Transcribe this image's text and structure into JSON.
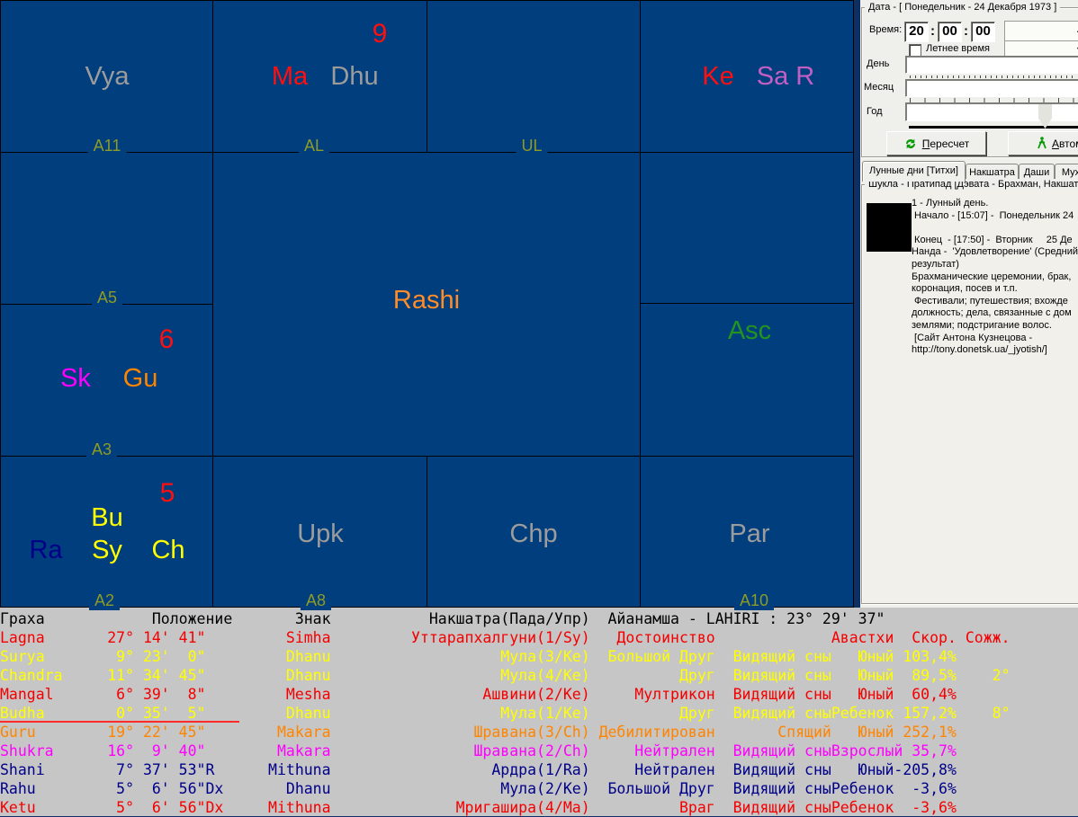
{
  "colors": {
    "chart_bg": "#003E7D",
    "grid": "#000000",
    "planet_gray": "#9C9C9C",
    "red": "#FF1010",
    "yellow": "#FFFF00",
    "orange": "#FF8400",
    "magenta": "#FF00FF",
    "violet": "#C35FC3",
    "navy": "#000089",
    "green": "#22941F",
    "olive": "#8E9B26",
    "table_bg": "#C6C6C6",
    "panel_bg": "#EFEFEB",
    "selection_underline": "#FF2A2A"
  },
  "chart": {
    "vya": "Vya",
    "a11": "A11",
    "nine": "9",
    "ma": "Ma",
    "dhu": "Dhu",
    "al": "AL",
    "ul": "UL",
    "ke": "Ke",
    "sa_r": "Sa R",
    "a5": "A5",
    "six": "6",
    "sk": "Sk",
    "gu": "Gu",
    "a3": "A3",
    "rashi": "Rashi",
    "asc": "Asc",
    "five": "5",
    "bu": "Bu",
    "ra": "Ra",
    "sy": "Sy",
    "ch": "Ch",
    "a2": "A2",
    "upk": "Upk",
    "a8": "A8",
    "chp": "Chp",
    "par": "Par",
    "a10": "A10"
  },
  "panel": {
    "date_title": "Дата - [ Понедельник - 24 Декабря  1973 ]",
    "time_label": "Время:",
    "time_h": "20",
    "time_m": "00",
    "time_s": "00",
    "colon": ":",
    "dst_label": "Летнее время",
    "day_label": "День",
    "month_label": "Месяц",
    "year_label": "Год",
    "recalc_button": "Пересчет",
    "auto_button": "Автома",
    "spin_up": "▲",
    "spin_down": "▼",
    "tabs": [
      "Лунные дни [Титхи]",
      "Накшатра",
      "Даши",
      "Мух"
    ],
    "info_title": "Шукла - Пратипад [Дэвата - Брахман, Накшат",
    "info_lines": [
      "1 - Лунный день.",
      " Начало - [15:07] -  Понедельник 24",
      "",
      " Конец  - [17:50] -  Вторник     25 Де",
      "Нанда -  'Удовлетворение' (Средний",
      "результат)",
      "Брахманические церемонии, брак,",
      "коронация, посев и т.п.",
      " Фестивали; путешествия; вхожде",
      "должность; дела, связанные с дом",
      "землями; подстригание волос.",
      " [Сайт Антона Кузнецова -",
      "http://tony.donetsk.ua/_jyotish/]"
    ]
  },
  "table": {
    "rows": [
      {
        "header": true,
        "color": "black",
        "name": "Граха",
        "pos": "Положение",
        "suffix": "",
        "sign": "Знак",
        "nakshatra": "Накшатра(Пада/Упр)",
        "ayanamsha": "Айанамша - LAHIRI : 23° 29' 37\""
      },
      {
        "color": "red",
        "name": "Lagna",
        "pos": "27° 14' 41\"",
        "suffix": "",
        "sign": "Simha",
        "nakshatra": "Уттарапхалгуни(1/Sy)",
        "dignity": "Достоинство",
        "state": "",
        "age": "Авастхи",
        "speed": "Скор.",
        "comb": "Сожж."
      },
      {
        "color": "yellow",
        "name": "Surya",
        "pos": "9° 23'  0\"",
        "suffix": "",
        "sign": "Dhanu",
        "nakshatra": "Мула(3/Ke)",
        "dignity": "Большой Друг",
        "state": "Видящий сны",
        "age": "Юный",
        "speed": "103,4%",
        "comb": ""
      },
      {
        "color": "yellow",
        "name": "Chandra",
        "pos": "11° 34' 45\"",
        "suffix": "",
        "sign": "Dhanu",
        "nakshatra": "Мула(4/Ke)",
        "dignity": "Друг",
        "state": "Видящий сны",
        "age": "Юный",
        "speed": "89,5%",
        "comb": "2°"
      },
      {
        "color": "red",
        "name": "Mangal",
        "pos": "6° 39'  8\"",
        "suffix": "",
        "sign": "Mesha",
        "nakshatra": "Ашвини(2/Ke)",
        "dignity": "Мултрикон",
        "state": "Видящий сны",
        "age": "Юный",
        "speed": "60,4%",
        "comb": ""
      },
      {
        "color": "yellow",
        "underline": true,
        "name": "Budha",
        "pos": "0° 35'  5\"",
        "suffix": "",
        "sign": "Dhanu",
        "nakshatra": "Мула(1/Ke)",
        "dignity": "Друг",
        "state": "Видящий сны",
        "age": "Ребенок",
        "speed": "157,2%",
        "comb": "8°"
      },
      {
        "color": "orange",
        "name": "Guru",
        "pos": "19° 22' 45\"",
        "suffix": "",
        "sign": "Makara",
        "nakshatra": "Шравана(3/Ch)",
        "dignity": "Дебилитирован",
        "state": "Спящий",
        "age": "Юный",
        "speed": "252,1%",
        "comb": ""
      },
      {
        "color": "magenta",
        "name": "Shukra",
        "pos": "16°  9' 40\"",
        "suffix": "",
        "sign": "Makara",
        "nakshatra": "Шравана(2/Ch)",
        "dignity": "Нейтрален",
        "state": "Видящий сны",
        "age": "Взрослый",
        "speed": "35,7%",
        "comb": ""
      },
      {
        "color": "navy",
        "name": "Shani",
        "pos": "7° 37' 53\"",
        "suffix": "R",
        "sign": "Mithuna",
        "nakshatra": "Ардра(1/Ra)",
        "dignity": "Нейтрален",
        "state": "Видящий сны",
        "age": "Юный",
        "speed": "-205,8%",
        "comb": ""
      },
      {
        "color": "navy",
        "name": "Rahu",
        "pos": "5°  6' 56\"",
        "suffix": "Dx",
        "sign": "Dhanu",
        "nakshatra": "Мула(2/Ke)",
        "dignity": "Большой Друг",
        "state": "Видящий сны",
        "age": "Ребенок",
        "speed": "-3,6%",
        "comb": ""
      },
      {
        "color": "red",
        "name": "Ketu",
        "pos": "5°  6' 56\"",
        "suffix": "Dx",
        "sign": "Mithuna",
        "nakshatra": "Мригашира(4/Ma)",
        "dignity": "Враг",
        "state": "Видящий сны",
        "age": "Ребенок",
        "speed": "-3,6%",
        "comb": ""
      }
    ]
  }
}
